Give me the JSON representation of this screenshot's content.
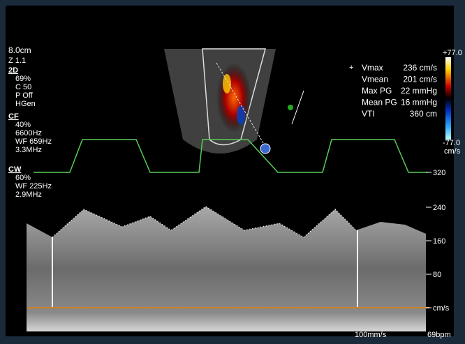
{
  "settings_panel": {
    "depth": "8.0cm",
    "zoom": "Z 1.1",
    "mode_2d": {
      "label": "2D",
      "lines": [
        "69%",
        "C 50",
        "P Off",
        "HGen"
      ]
    },
    "mode_cf": {
      "label": "CF",
      "lines": [
        "40%",
        "6600Hz",
        "WF 659Hz",
        "3.3MHz"
      ]
    },
    "mode_cw": {
      "label": "CW",
      "lines": [
        "60%",
        "WF 225Hz",
        "2.9MHz"
      ]
    }
  },
  "color_scale": {
    "top": "+77.0",
    "bottom": "-77.0",
    "unit": "cm/s"
  },
  "measurements": [
    {
      "label": "Vmax",
      "value": "236 cm/s"
    },
    {
      "label": "Vmean",
      "value": "201 cm/s"
    },
    {
      "label": "Max PG",
      "value": "22 mmHg"
    },
    {
      "label": "Mean PG",
      "value": "16 mmHg"
    },
    {
      "label": "VTI",
      "value": "360 cm"
    }
  ],
  "velocity_scale": {
    "ticks": [
      "320",
      "240",
      "160",
      "80"
    ],
    "unit": "cm/s"
  },
  "footer": {
    "sweep": "100mm/s",
    "heart_rate": "69bpm"
  }
}
